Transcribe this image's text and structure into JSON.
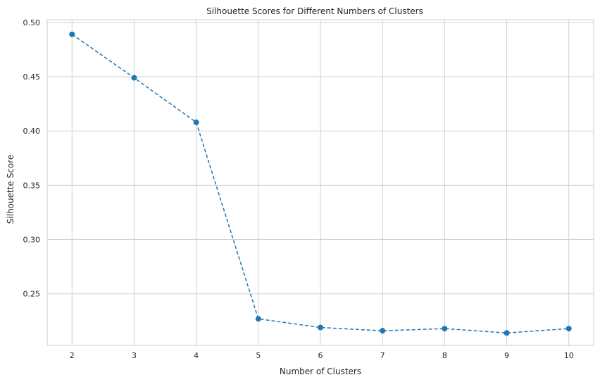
{
  "chart_data": {
    "type": "line",
    "title": "Silhouette Scores for Different Numbers of Clusters",
    "xlabel": "Number of Clusters",
    "ylabel": "Silhouette Score",
    "x": [
      2,
      3,
      4,
      5,
      6,
      7,
      8,
      9,
      10
    ],
    "y": [
      0.489,
      0.449,
      0.408,
      0.227,
      0.219,
      0.216,
      0.218,
      0.214,
      0.218
    ],
    "xticks": [
      "2",
      "3",
      "4",
      "5",
      "6",
      "7",
      "8",
      "9",
      "10"
    ],
    "yticks": [
      "0.25",
      "0.30",
      "0.35",
      "0.40",
      "0.45",
      "0.50"
    ],
    "xlim": [
      1.6,
      10.4
    ],
    "ylim": [
      0.2025,
      0.5025
    ],
    "line_style": "dashed",
    "marker": "circle",
    "grid": true,
    "colors": {
      "line": "#1f77b4",
      "grid": "#d0d0d0",
      "spine": "#cccccc",
      "text": "#262626"
    }
  }
}
